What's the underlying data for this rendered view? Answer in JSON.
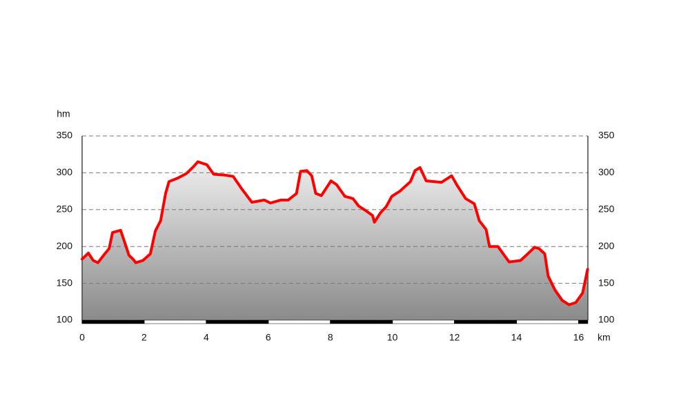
{
  "chart_data": {
    "type": "area",
    "y_label": "hm",
    "x_label": "km",
    "color": "#ff0000",
    "grid": true,
    "x": [
      0,
      0.2,
      0.36,
      0.51,
      0.73,
      0.87,
      0.98,
      1.24,
      1.4,
      1.51,
      1.64,
      1.73,
      1.96,
      2.2,
      2.36,
      2.53,
      2.69,
      2.8,
      3.09,
      3.36,
      3.58,
      3.73,
      4.02,
      4.24,
      4.58,
      4.87,
      5.13,
      5.47,
      5.87,
      6.07,
      6.4,
      6.64,
      6.91,
      7.04,
      7.24,
      7.4,
      7.53,
      7.71,
      8.02,
      8.2,
      8.47,
      8.73,
      8.91,
      9.13,
      9.36,
      9.42,
      9.62,
      9.8,
      9.98,
      10.24,
      10.58,
      10.73,
      10.89,
      11.09,
      11.36,
      11.58,
      11.91,
      12.07,
      12.36,
      12.64,
      12.8,
      13.02,
      13.13,
      13.4,
      13.76,
      14.13,
      14.36,
      14.58,
      14.73,
      14.91,
      15.02,
      15.24,
      15.47,
      15.69,
      15.91,
      16.13,
      16.29
    ],
    "values": [
      183,
      191,
      181,
      178,
      190,
      197,
      219,
      222,
      202,
      188,
      183,
      178,
      181,
      190,
      221,
      235,
      272,
      288,
      293,
      299,
      308,
      315,
      311,
      298,
      297,
      295,
      279,
      260,
      263,
      259,
      263,
      263,
      272,
      302,
      303,
      296,
      272,
      269,
      289,
      284,
      268,
      265,
      255,
      249,
      242,
      233,
      246,
      254,
      268,
      275,
      288,
      303,
      307,
      289,
      288,
      287,
      296,
      284,
      265,
      258,
      235,
      223,
      200,
      200,
      179,
      181,
      190,
      199,
      197,
      190,
      160,
      141,
      127,
      121,
      124,
      137,
      169
    ],
    "xlim": [
      0,
      16.3
    ],
    "xticks": [
      0,
      2,
      4,
      6,
      8,
      10,
      12,
      14,
      16
    ],
    "ylim": [
      100,
      350
    ],
    "yticks": [
      100,
      150,
      200,
      250,
      300,
      350
    ]
  }
}
